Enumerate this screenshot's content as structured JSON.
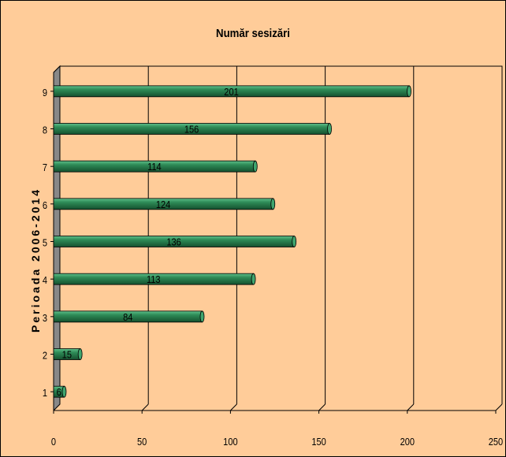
{
  "chart_data": {
    "type": "bar",
    "orientation": "horizontal",
    "title": "Număr sesizări",
    "xlabel": "",
    "ylabel": "Perioada 2006-2014",
    "categories": [
      "1",
      "2",
      "3",
      "4",
      "5",
      "6",
      "7",
      "8",
      "9"
    ],
    "values": [
      6,
      15,
      84,
      113,
      136,
      124,
      114,
      156,
      201
    ],
    "xlim": [
      0,
      250
    ],
    "xticks": [
      0,
      50,
      100,
      150,
      200,
      250
    ],
    "grid": true,
    "legend": "none",
    "colors": {
      "background": "#ffcc99",
      "bar": "#2e8b57",
      "bar_highlight": "#5fc08a",
      "bar_dark": "#14502e",
      "grid": "#000000",
      "wall": "#888888"
    }
  }
}
